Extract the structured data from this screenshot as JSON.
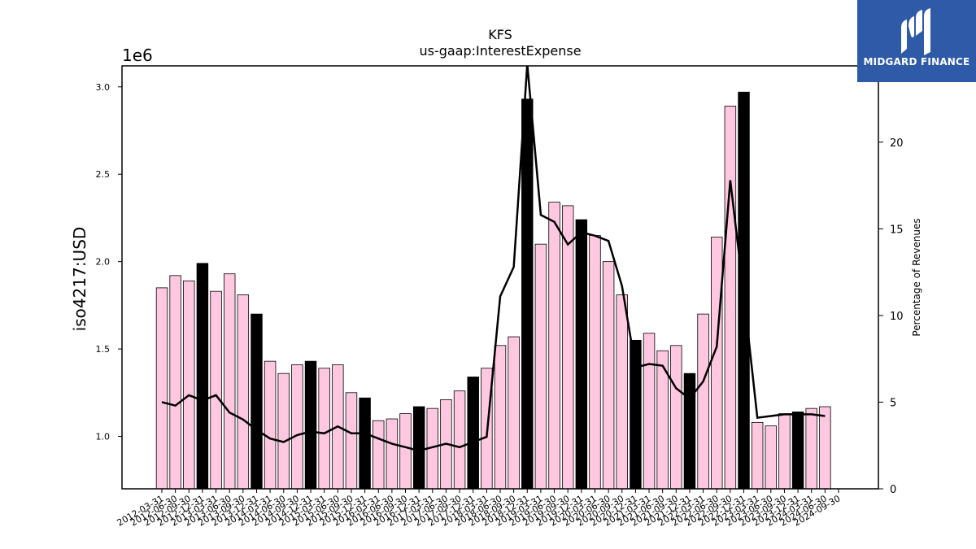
{
  "logo": {
    "text": "MIDGARD FINANCE",
    "background": "#2e5aa8"
  },
  "chart_data": {
    "type": "bar",
    "title": "KFS",
    "subtitle": "us-gaap:InterestExpense",
    "ylabel": "iso4217:USD",
    "y_offset_label": "1e6",
    "y2label": "Percentage of Revenues",
    "ylim": [
      0.7,
      3.12
    ],
    "y2lim": [
      0,
      24.4
    ],
    "yticks": [
      "1.0",
      "1.5",
      "2.0",
      "2.5",
      "3.0"
    ],
    "y2ticks": [
      "0",
      "5",
      "10",
      "15",
      "20"
    ],
    "categories": [
      "2012-03-31",
      "2012-06-30",
      "2012-09-30",
      "2012-12-31",
      "2013-03-31",
      "2013-06-30",
      "2013-09-30",
      "2013-12-31",
      "2014-03-31",
      "2014-06-30",
      "2014-09-30",
      "2014-12-31",
      "2015-03-31",
      "2015-06-30",
      "2015-09-30",
      "2015-12-31",
      "2016-03-31",
      "2016-06-30",
      "2016-09-30",
      "2016-12-31",
      "2017-03-31",
      "2017-06-30",
      "2017-09-30",
      "2017-12-31",
      "2018-03-31",
      "2018-06-30",
      "2018-09-30",
      "2018-12-31",
      "2019-03-31",
      "2019-06-30",
      "2019-09-30",
      "2019-12-31",
      "2020-03-31",
      "2020-06-30",
      "2020-09-30",
      "2020-12-31",
      "2021-03-31",
      "2021-06-30",
      "2021-09-30",
      "2021-12-31",
      "2022-03-31",
      "2022-06-30",
      "2022-09-30",
      "2022-12-31",
      "2023-03-31",
      "2023-06-30",
      "2023-09-30",
      "2023-12-31",
      "2024-03-31",
      "2024-06-30",
      "2024-09-30"
    ],
    "series": [
      {
        "kind": "bar",
        "values": [
          1.85,
          1.92,
          1.89,
          1.99,
          1.83,
          1.93,
          1.81,
          1.7,
          1.43,
          1.36,
          1.41,
          1.43,
          1.39,
          1.41,
          1.25,
          1.22,
          1.09,
          1.1,
          1.13,
          1.17,
          1.16,
          1.21,
          1.26,
          1.34,
          1.39,
          1.52,
          1.57,
          2.93,
          2.1,
          2.34,
          2.32,
          2.24,
          2.15,
          2.0,
          1.81,
          1.55,
          1.59,
          1.49,
          1.52,
          1.36,
          1.7,
          2.14,
          2.89,
          2.97,
          1.08,
          1.06,
          1.13,
          1.14,
          1.16,
          1.17,
          null
        ],
        "fy_end": [
          false,
          false,
          false,
          true,
          false,
          false,
          false,
          true,
          false,
          false,
          false,
          true,
          false,
          false,
          false,
          true,
          false,
          false,
          false,
          true,
          false,
          false,
          false,
          true,
          false,
          false,
          false,
          true,
          false,
          false,
          false,
          true,
          false,
          false,
          false,
          true,
          false,
          false,
          false,
          true,
          false,
          false,
          false,
          true,
          false,
          false,
          false,
          true,
          false,
          false,
          false
        ],
        "fill": "#ffc8e0",
        "fy_fill": "#000000"
      },
      {
        "kind": "line",
        "axis": "right",
        "values": [
          5.0,
          4.8,
          5.4,
          5.1,
          5.4,
          4.4,
          4.0,
          3.4,
          2.9,
          2.7,
          3.1,
          3.3,
          3.2,
          3.6,
          3.2,
          3.2,
          2.9,
          2.6,
          2.4,
          2.2,
          2.4,
          2.6,
          2.4,
          2.7,
          3.0,
          11.1,
          12.8,
          24.5,
          15.8,
          15.4,
          14.1,
          14.8,
          14.6,
          14.3,
          11.7,
          7.0,
          7.2,
          7.1,
          5.8,
          5.2,
          6.2,
          8.2,
          17.8,
          11.2,
          4.1,
          4.2,
          4.3,
          4.3,
          4.3,
          4.2,
          null
        ],
        "color": "#000000"
      }
    ],
    "grid": false
  }
}
